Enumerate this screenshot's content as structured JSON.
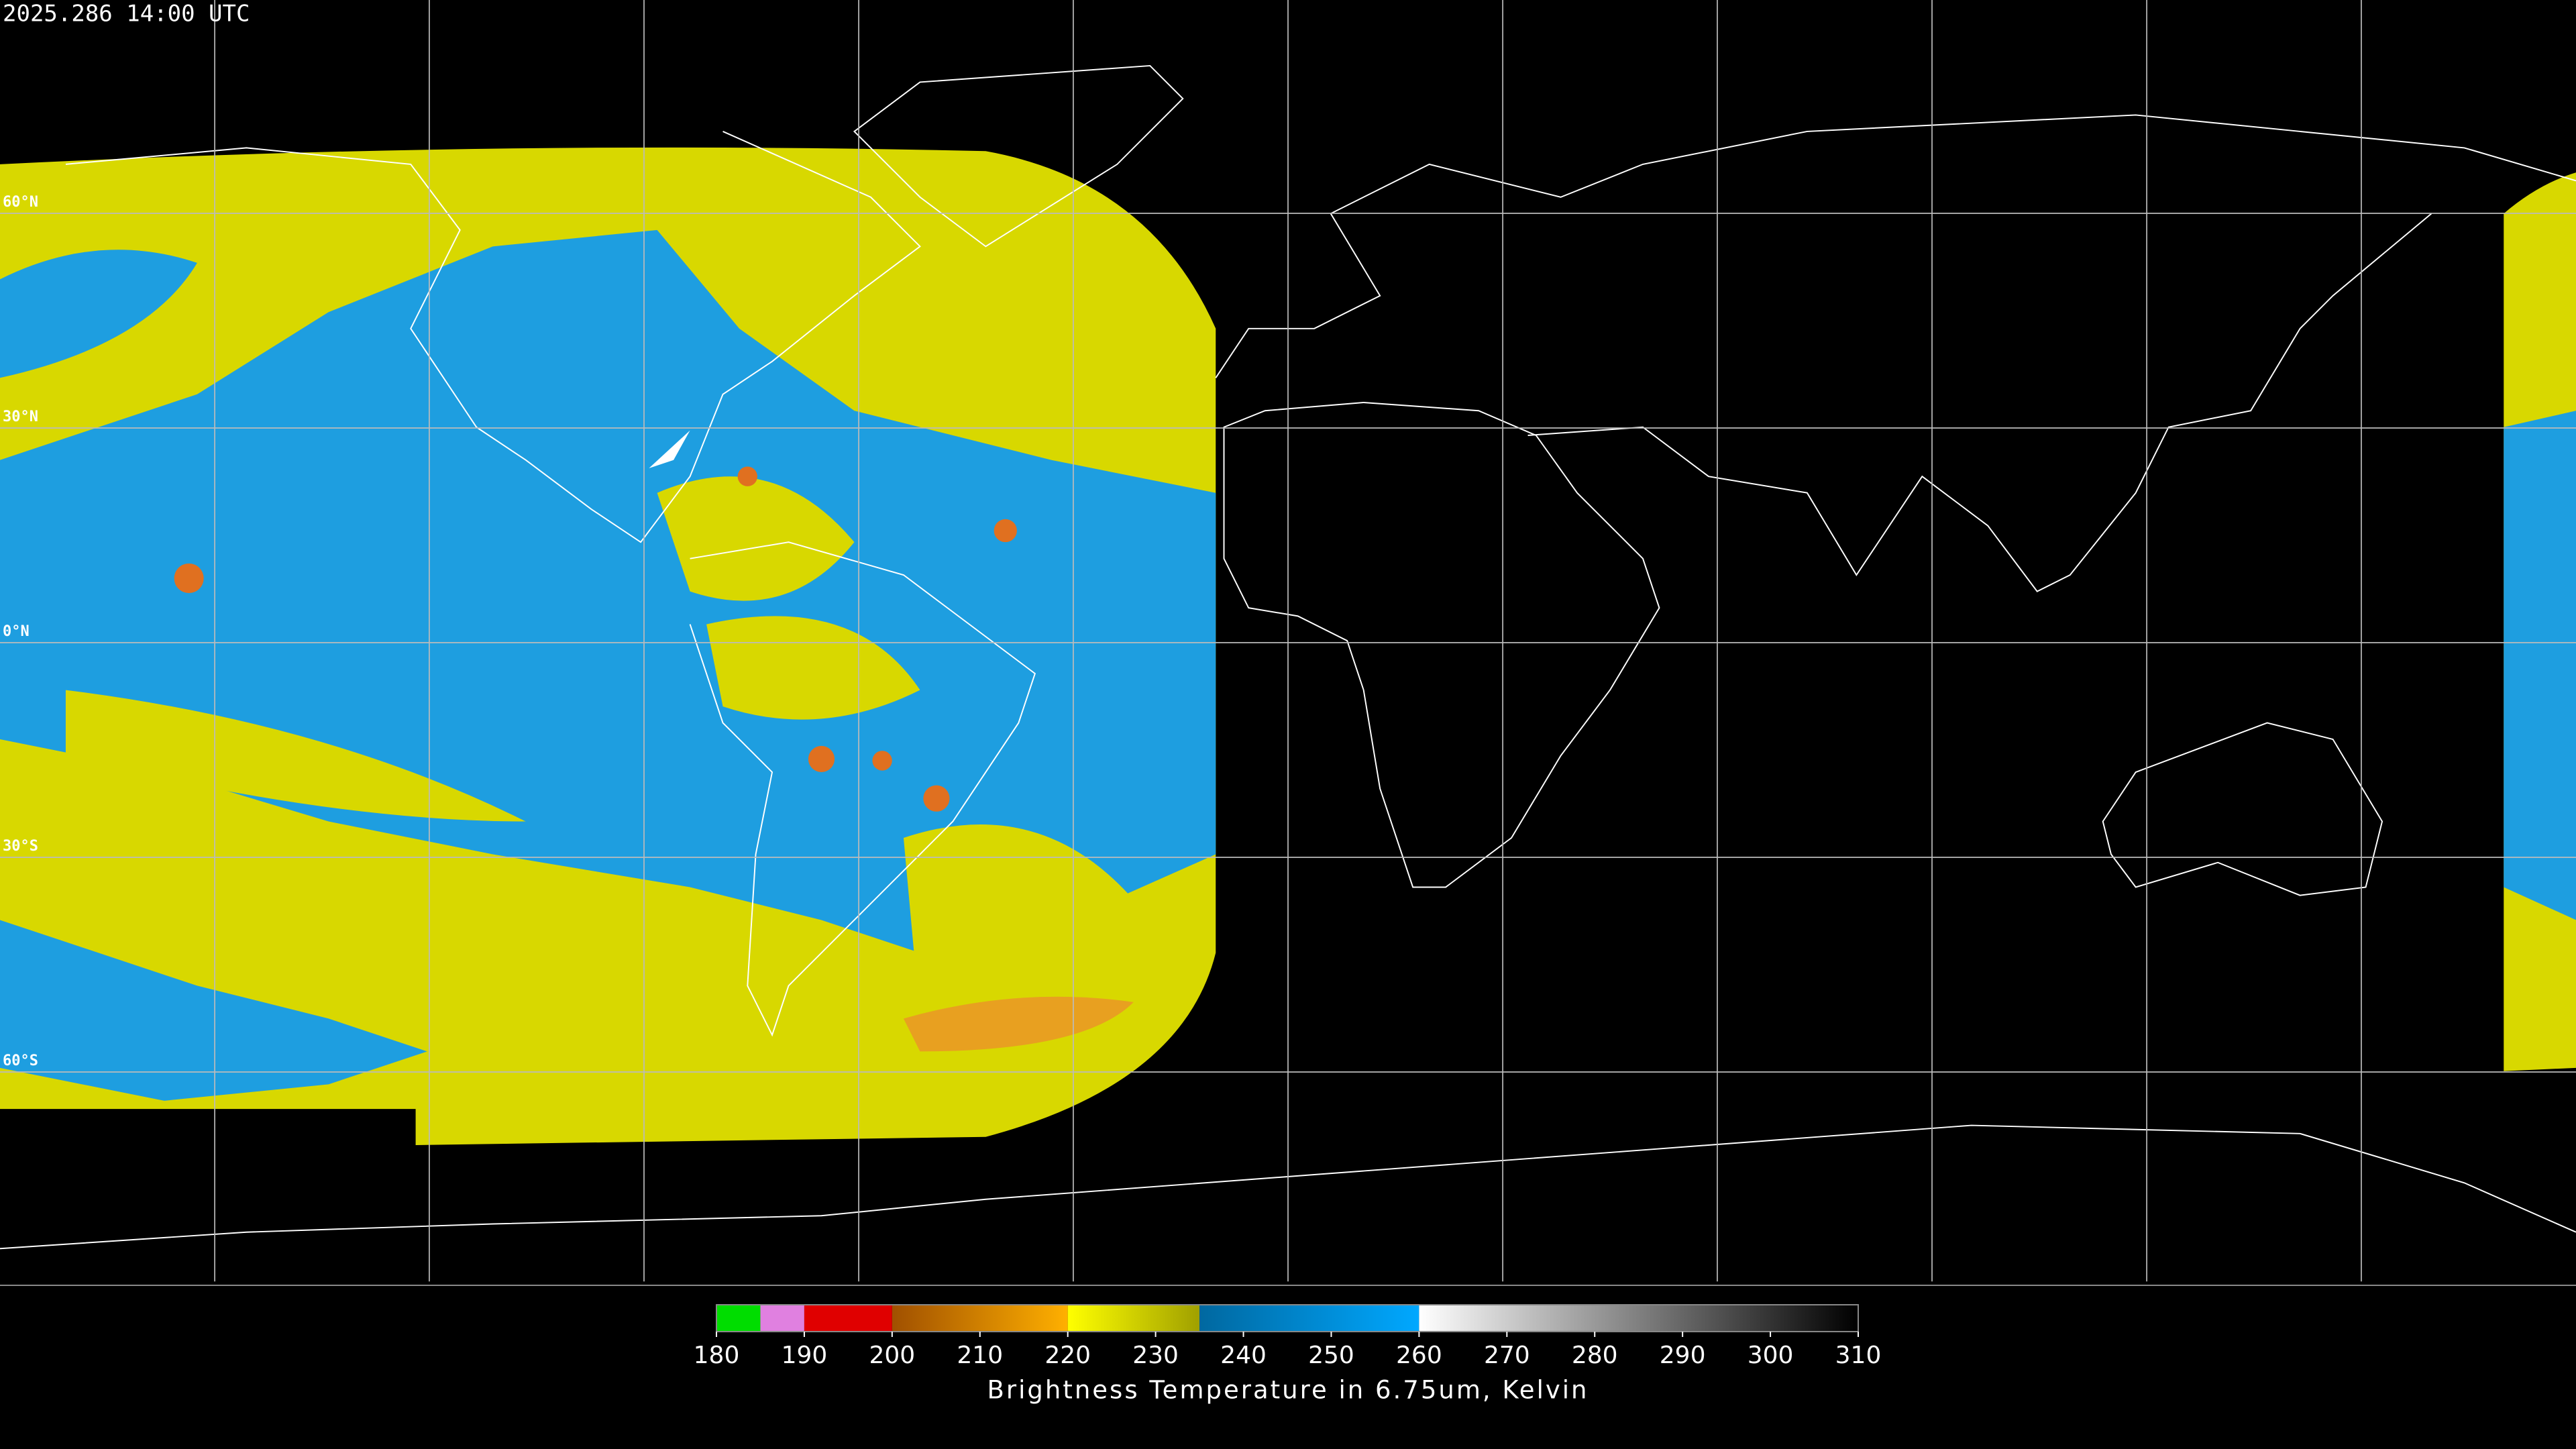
{
  "header": {
    "timestamp": "2025.286 14:00 UTC"
  },
  "map": {
    "latitudes": [
      {
        "value": 60,
        "label": "60°N"
      },
      {
        "value": 30,
        "label": "30°N"
      },
      {
        "value": 0,
        "label": "0°N"
      },
      {
        "value": -30,
        "label": "30°S"
      },
      {
        "value": -60,
        "label": "60°S"
      }
    ]
  },
  "colorbar": {
    "label": "Brightness Temperature in 6.75um, Kelvin",
    "lim": [
      180,
      310
    ],
    "ticks": [
      180,
      190,
      200,
      210,
      220,
      230,
      240,
      250,
      260,
      270,
      280,
      290,
      300,
      310
    ],
    "segments": [
      {
        "from": 180,
        "to": 185,
        "start_color": "#00dd00",
        "end_color": "#00dd00"
      },
      {
        "from": 185,
        "to": 190,
        "start_color": "#e080e0",
        "end_color": "#e080e0"
      },
      {
        "from": 190,
        "to": 200,
        "start_color": "#e00000",
        "end_color": "#e00000"
      },
      {
        "from": 200,
        "to": 220,
        "start_color": "#a05000",
        "end_color": "#ffb000"
      },
      {
        "from": 220,
        "to": 235,
        "start_color": "#ffff00",
        "end_color": "#a0a000"
      },
      {
        "from": 235,
        "to": 260,
        "start_color": "#0068a0",
        "end_color": "#00a8ff"
      },
      {
        "from": 260,
        "to": 310,
        "start_color": "#ffffff",
        "end_color": "#000000"
      }
    ]
  }
}
